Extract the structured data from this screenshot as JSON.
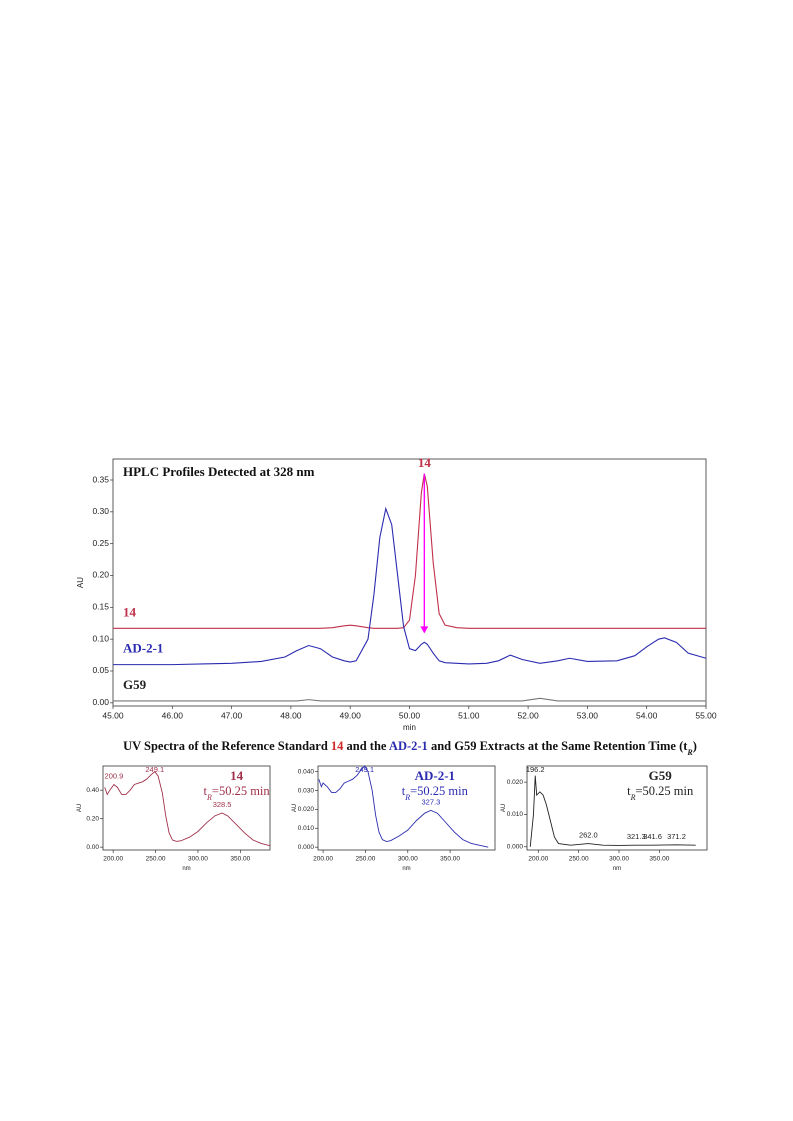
{
  "caption": {
    "parts": [
      "UV Spectra of the Reference Standard ",
      "14",
      " and the ",
      "AD-2-1",
      " and G59 Extracts at the Same Retention Time (t",
      "R",
      ")"
    ],
    "colors": [
      "#111111",
      "#d02828",
      "#111111",
      "#2b2bb0",
      "#111111",
      "#111111",
      "#111111"
    ]
  },
  "chart_data": [
    {
      "type": "line",
      "title": "HPLC Profiles Detected at 328 nm",
      "x_label": "min",
      "y_label": "AU",
      "annotation": {
        "text": "14",
        "x": 50.25,
        "color": "#ff00ff"
      },
      "xlim": [
        45,
        55
      ],
      "ylim": [
        -0.005,
        0.383
      ],
      "xticks": [
        {
          "value": 45,
          "label": "45.00"
        },
        {
          "value": 46,
          "label": "46.00"
        },
        {
          "value": 47,
          "label": "47.00"
        },
        {
          "value": 48,
          "label": "48.00"
        },
        {
          "value": 49,
          "label": "49.00"
        },
        {
          "value": 50,
          "label": "50.00"
        },
        {
          "value": 51,
          "label": "51.00"
        },
        {
          "value": 52,
          "label": "52.00"
        },
        {
          "value": 53,
          "label": "53.00"
        },
        {
          "value": 54,
          "label": "54.00"
        },
        {
          "value": 55,
          "label": "55.00"
        }
      ],
      "yticks": [
        {
          "value": 0,
          "label": "0.00"
        },
        {
          "value": 0.05,
          "label": "0.05"
        },
        {
          "value": 0.1,
          "label": "0.10"
        },
        {
          "value": 0.15,
          "label": "0.15"
        },
        {
          "value": 0.2,
          "label": "0.20"
        },
        {
          "value": 0.25,
          "label": "0.25"
        },
        {
          "value": 0.3,
          "label": "0.30"
        },
        {
          "value": 0.35,
          "label": "0.35"
        }
      ],
      "x": [
        45,
        45.5,
        46,
        46.5,
        47,
        47.5,
        47.9,
        48.1,
        48.3,
        48.5,
        48.7,
        48.9,
        49.0,
        49.1,
        49.3,
        49.4,
        49.5,
        49.6,
        49.7,
        49.8,
        49.9,
        50.0,
        50.1,
        50.2,
        50.25,
        50.3,
        50.4,
        50.5,
        50.6,
        50.8,
        51.0,
        51.3,
        51.5,
        51.7,
        51.9,
        52.2,
        52.5,
        52.7,
        53.0,
        53.5,
        53.8,
        54.0,
        54.2,
        54.3,
        54.5,
        54.7,
        55.0
      ],
      "series": [
        {
          "name": "14",
          "color": "#c0304a",
          "values": [
            0.117,
            0.117,
            0.117,
            0.117,
            0.117,
            0.117,
            0.117,
            0.117,
            0.117,
            0.117,
            0.118,
            0.121,
            0.122,
            0.121,
            0.118,
            0.117,
            0.117,
            0.117,
            0.117,
            0.117,
            0.118,
            0.13,
            0.2,
            0.33,
            0.36,
            0.34,
            0.22,
            0.14,
            0.122,
            0.118,
            0.117,
            0.117,
            0.117,
            0.117,
            0.117,
            0.117,
            0.117,
            0.117,
            0.117,
            0.117,
            0.117,
            0.117,
            0.117,
            0.117,
            0.117,
            0.117,
            0.117
          ]
        },
        {
          "name": "AD-2-1",
          "color": "#2b2bb0",
          "values": [
            0.06,
            0.06,
            0.06,
            0.061,
            0.062,
            0.065,
            0.072,
            0.082,
            0.09,
            0.085,
            0.072,
            0.066,
            0.064,
            0.066,
            0.1,
            0.17,
            0.26,
            0.305,
            0.28,
            0.2,
            0.12,
            0.085,
            0.082,
            0.092,
            0.095,
            0.092,
            0.078,
            0.066,
            0.063,
            0.062,
            0.061,
            0.062,
            0.066,
            0.075,
            0.068,
            0.062,
            0.066,
            0.07,
            0.065,
            0.066,
            0.074,
            0.088,
            0.1,
            0.102,
            0.095,
            0.078,
            0.07
          ]
        },
        {
          "name": "G59",
          "color": "#777777",
          "values": [
            0.003,
            0.003,
            0.003,
            0.003,
            0.003,
            0.003,
            0.003,
            0.003,
            0.005,
            0.003,
            0.003,
            0.003,
            0.003,
            0.003,
            0.003,
            0.003,
            0.003,
            0.003,
            0.003,
            0.003,
            0.003,
            0.003,
            0.003,
            0.003,
            0.003,
            0.003,
            0.003,
            0.003,
            0.003,
            0.003,
            0.003,
            0.003,
            0.003,
            0.003,
            0.003,
            0.007,
            0.003,
            0.003,
            0.003,
            0.003,
            0.003,
            0.003,
            0.003,
            0.003,
            0.003,
            0.003,
            0.003
          ]
        }
      ]
    },
    {
      "type": "line",
      "x_label": "nm",
      "y_label": "AU",
      "annotation": [
        "t",
        "R",
        "=50.25 min"
      ],
      "xlim": [
        188,
        385
      ],
      "ylim": [
        -0.02,
        0.57
      ],
      "xticks": [
        {
          "value": 200,
          "label": "200.00"
        },
        {
          "value": 250,
          "label": "250.00"
        },
        {
          "value": 300,
          "label": "300.00"
        },
        {
          "value": 350,
          "label": "350.00"
        }
      ],
      "yticks": [
        {
          "value": 0,
          "label": "0.00"
        },
        {
          "value": 0.2,
          "label": "0.20"
        },
        {
          "value": 0.4,
          "label": "0.40"
        }
      ],
      "x": [
        190,
        193,
        196,
        200.9,
        205,
        210,
        215,
        220,
        225,
        230,
        235,
        240,
        245,
        249.1,
        253,
        258,
        262,
        266,
        270,
        275,
        280,
        290,
        300,
        310,
        320,
        328.5,
        335,
        345,
        355,
        365,
        375,
        385
      ],
      "peaks": [
        200.9,
        249.1,
        328.5
      ],
      "series": [
        {
          "name": "14",
          "color": "#a0304a",
          "values": [
            0.42,
            0.37,
            0.4,
            0.44,
            0.42,
            0.37,
            0.37,
            0.4,
            0.44,
            0.45,
            0.46,
            0.48,
            0.51,
            0.53,
            0.5,
            0.38,
            0.22,
            0.1,
            0.05,
            0.04,
            0.045,
            0.07,
            0.11,
            0.17,
            0.22,
            0.24,
            0.22,
            0.16,
            0.1,
            0.05,
            0.025,
            0.01
          ]
        }
      ]
    },
    {
      "type": "line",
      "x_label": "nm",
      "y_label": "AU",
      "annotation": [
        "t",
        "R",
        "=50.25 min"
      ],
      "xlim": [
        194,
        403
      ],
      "ylim": [
        -0.0015,
        0.043
      ],
      "xticks": [
        {
          "value": 200,
          "label": "200.00"
        },
        {
          "value": 250,
          "label": "250.00"
        },
        {
          "value": 300,
          "label": "300.00"
        },
        {
          "value": 350,
          "label": "350.00"
        }
      ],
      "yticks": [
        {
          "value": 0,
          "label": "0.000"
        },
        {
          "value": 0.01,
          "label": "0.010"
        },
        {
          "value": 0.02,
          "label": "0.020"
        },
        {
          "value": 0.03,
          "label": "0.030"
        },
        {
          "value": 0.04,
          "label": "0.040"
        }
      ],
      "x": [
        195,
        198,
        200,
        205,
        210,
        215,
        220,
        225,
        230,
        235,
        240,
        245,
        249.1,
        253,
        258,
        262,
        266,
        270,
        275,
        280,
        290,
        300,
        310,
        320,
        327.3,
        335,
        345,
        355,
        365,
        375,
        385,
        395
      ],
      "peaks": [
        249.1,
        327.3
      ],
      "series": [
        {
          "name": "AD-2-1",
          "color": "#2b2bb0",
          "values": [
            0.036,
            0.032,
            0.034,
            0.032,
            0.029,
            0.029,
            0.031,
            0.034,
            0.035,
            0.036,
            0.038,
            0.041,
            0.043,
            0.04,
            0.03,
            0.017,
            0.008,
            0.004,
            0.003,
            0.0035,
            0.006,
            0.009,
            0.014,
            0.018,
            0.0195,
            0.018,
            0.013,
            0.008,
            0.004,
            0.002,
            0.001,
            0
          ]
        }
      ]
    },
    {
      "type": "line",
      "x_label": "nm",
      "y_label": "AU",
      "annotation": [
        "t",
        "R",
        "=50.25 min"
      ],
      "xlim": [
        186,
        409
      ],
      "ylim": [
        -0.001,
        0.025
      ],
      "xticks": [
        {
          "value": 200,
          "label": "200.00"
        },
        {
          "value": 250,
          "label": "250.00"
        },
        {
          "value": 300,
          "label": "300.00"
        },
        {
          "value": 350,
          "label": "350.00"
        }
      ],
      "yticks": [
        {
          "value": 0,
          "label": "0.000"
        },
        {
          "value": 0.01,
          "label": "0.010"
        },
        {
          "value": 0.02,
          "label": "0.020"
        }
      ],
      "x": [
        190,
        194,
        196.2,
        198,
        202,
        206,
        210,
        215,
        220,
        225,
        240,
        262,
        280,
        300,
        321.3,
        341.6,
        371.2,
        395
      ],
      "peaks": [
        196.2,
        {
          "value": 262,
          "label": "262.0"
        },
        321.3,
        341.6,
        371.2
      ],
      "series": [
        {
          "name": "G59",
          "color": "#222222",
          "values": [
            0.0,
            0.01,
            0.022,
            0.016,
            0.017,
            0.016,
            0.013,
            0.008,
            0.003,
            0.001,
            0.0005,
            0.001,
            0.0005,
            0.0004,
            0.0005,
            0.0005,
            0.0006,
            0.0005
          ]
        }
      ]
    }
  ]
}
